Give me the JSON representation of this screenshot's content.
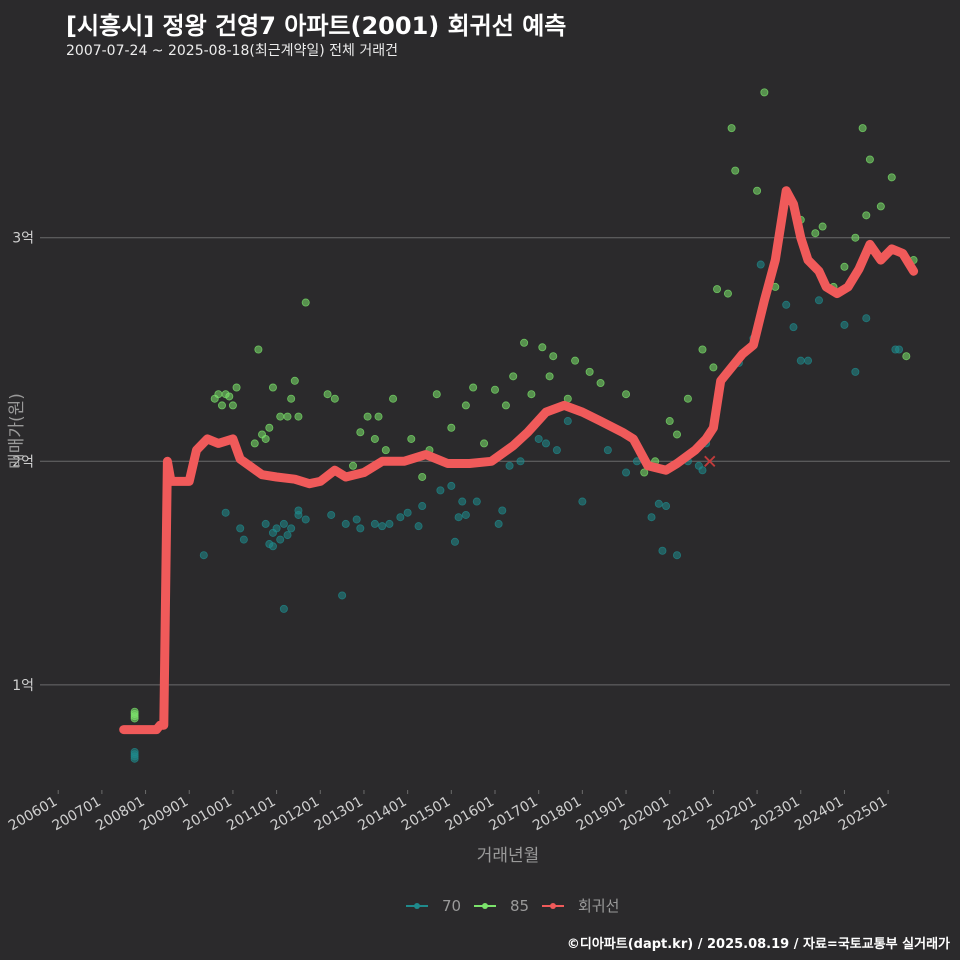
{
  "title": "[시흥시] 정왕 건영7 아파트(2001) 회귀선 예측",
  "subtitle": "2007-07-24 ~ 2025-08-18(최근계약일) 전체 거래건",
  "caption": "©디아파트(dapt.kr) / 2025.08.19 / 자료=국토교통부 실거래가",
  "colors": {
    "background": "#2b2a2c",
    "grid": "#6b6b6b",
    "text": "#cfcfcf",
    "series_70": "#1f8a8c",
    "series_85": "#7be36b",
    "regression": "#f05a5a"
  },
  "chart_data": {
    "type": "scatter",
    "title": "[시흥시] 정왕 건영7 아파트(2001) 회귀선 예측",
    "subtitle": "2007-07-24 ~ 2025-08-18(최근계약일) 전체 거래건",
    "xlabel": "거래년월",
    "ylabel": "매매가(원)",
    "xlim": [
      "2005-08",
      "2026-06"
    ],
    "ylim": [
      0.53,
      3.75
    ],
    "y_unit": "억",
    "x_ticks": [
      "200601",
      "200701",
      "200801",
      "200901",
      "201001",
      "201101",
      "201201",
      "201301",
      "201401",
      "201501",
      "201601",
      "201701",
      "201801",
      "201901",
      "202001",
      "202101",
      "202201",
      "202301",
      "202401",
      "202501"
    ],
    "y_ticks": [
      {
        "value": 1,
        "label": "1억"
      },
      {
        "value": 2,
        "label": "2억"
      },
      {
        "value": 3,
        "label": "3억"
      }
    ],
    "grid": "horizontal",
    "legend": {
      "position": "bottom",
      "entries": [
        "70",
        "85",
        "회귀선"
      ]
    },
    "series": [
      {
        "name": "70",
        "points": [
          [
            "2007-10",
            0.67
          ],
          [
            "2007-10",
            0.68
          ],
          [
            "2007-10",
            0.69
          ],
          [
            "2007-10",
            0.7
          ],
          [
            "2009-05",
            1.58
          ],
          [
            "2009-11",
            1.77
          ],
          [
            "2010-03",
            1.7
          ],
          [
            "2010-04",
            1.65
          ],
          [
            "2010-10",
            1.72
          ],
          [
            "2010-11",
            1.63
          ],
          [
            "2010-12",
            1.62
          ],
          [
            "2010-12",
            1.68
          ],
          [
            "2011-01",
            1.7
          ],
          [
            "2011-02",
            1.65
          ],
          [
            "2011-03",
            1.72
          ],
          [
            "2011-03",
            1.34
          ],
          [
            "2011-04",
            1.67
          ],
          [
            "2011-05",
            1.7
          ],
          [
            "2011-07",
            1.78
          ],
          [
            "2011-07",
            1.76
          ],
          [
            "2011-09",
            1.74
          ],
          [
            "2012-04",
            1.76
          ],
          [
            "2012-07",
            1.4
          ],
          [
            "2012-08",
            1.72
          ],
          [
            "2012-11",
            1.74
          ],
          [
            "2012-12",
            1.7
          ],
          [
            "2013-04",
            1.72
          ],
          [
            "2013-06",
            1.71
          ],
          [
            "2013-08",
            1.72
          ],
          [
            "2013-11",
            1.75
          ],
          [
            "2014-01",
            1.77
          ],
          [
            "2014-04",
            1.71
          ],
          [
            "2014-05",
            1.8
          ],
          [
            "2014-10",
            1.87
          ],
          [
            "2015-01",
            1.89
          ],
          [
            "2015-02",
            1.64
          ],
          [
            "2015-03",
            1.75
          ],
          [
            "2015-04",
            1.82
          ],
          [
            "2015-05",
            1.76
          ],
          [
            "2015-08",
            1.82
          ],
          [
            "2016-02",
            1.72
          ],
          [
            "2016-03",
            1.78
          ],
          [
            "2016-05",
            1.98
          ],
          [
            "2016-08",
            2.0
          ],
          [
            "2017-01",
            2.1
          ],
          [
            "2017-03",
            2.08
          ],
          [
            "2017-06",
            2.05
          ],
          [
            "2017-09",
            2.18
          ],
          [
            "2018-01",
            1.82
          ],
          [
            "2018-08",
            2.05
          ],
          [
            "2019-01",
            1.95
          ],
          [
            "2019-04",
            2.0
          ],
          [
            "2019-08",
            1.75
          ],
          [
            "2019-10",
            1.81
          ],
          [
            "2019-11",
            1.6
          ],
          [
            "2019-12",
            1.8
          ],
          [
            "2020-03",
            1.58
          ],
          [
            "2020-06",
            2.0
          ],
          [
            "2020-08",
            2.05
          ],
          [
            "2020-09",
            1.98
          ],
          [
            "2020-10",
            1.96
          ],
          [
            "2020-11",
            2.08
          ],
          [
            "2021-08",
            2.44
          ],
          [
            "2021-12",
            2.55
          ],
          [
            "2022-02",
            2.88
          ],
          [
            "2022-09",
            2.7
          ],
          [
            "2022-11",
            2.6
          ],
          [
            "2023-01",
            2.45
          ],
          [
            "2023-03",
            2.45
          ],
          [
            "2023-06",
            2.72
          ],
          [
            "2023-09",
            2.77
          ],
          [
            "2024-01",
            2.61
          ],
          [
            "2024-04",
            2.4
          ],
          [
            "2024-07",
            2.64
          ],
          [
            "2025-03",
            2.5
          ],
          [
            "2025-04",
            2.5
          ]
        ]
      },
      {
        "name": "85",
        "points": [
          [
            "2007-10",
            0.85
          ],
          [
            "2007-10",
            0.86
          ],
          [
            "2007-10",
            0.87
          ],
          [
            "2007-10",
            0.88
          ],
          [
            "2009-08",
            2.28
          ],
          [
            "2009-09",
            2.3
          ],
          [
            "2009-10",
            2.25
          ],
          [
            "2009-11",
            2.3
          ],
          [
            "2009-12",
            2.29
          ],
          [
            "2010-01",
            2.25
          ],
          [
            "2010-02",
            2.33
          ],
          [
            "2010-07",
            2.08
          ],
          [
            "2010-08",
            2.5
          ],
          [
            "2010-09",
            2.12
          ],
          [
            "2010-10",
            2.1
          ],
          [
            "2010-11",
            2.15
          ],
          [
            "2010-12",
            2.33
          ],
          [
            "2011-02",
            2.2
          ],
          [
            "2011-04",
            2.2
          ],
          [
            "2011-05",
            2.28
          ],
          [
            "2011-06",
            2.36
          ],
          [
            "2011-07",
            2.2
          ],
          [
            "2011-09",
            2.71
          ],
          [
            "2012-03",
            2.3
          ],
          [
            "2012-05",
            2.28
          ],
          [
            "2012-10",
            1.98
          ],
          [
            "2012-12",
            2.13
          ],
          [
            "2013-02",
            2.2
          ],
          [
            "2013-04",
            2.1
          ],
          [
            "2013-05",
            2.2
          ],
          [
            "2013-07",
            2.05
          ],
          [
            "2013-09",
            2.28
          ],
          [
            "2013-11",
            2.0
          ],
          [
            "2014-02",
            2.1
          ],
          [
            "2014-05",
            1.93
          ],
          [
            "2014-07",
            2.05
          ],
          [
            "2014-09",
            2.3
          ],
          [
            "2015-01",
            2.15
          ],
          [
            "2015-05",
            2.25
          ],
          [
            "2015-07",
            2.33
          ],
          [
            "2015-10",
            2.08
          ],
          [
            "2016-01",
            2.32
          ],
          [
            "2016-04",
            2.25
          ],
          [
            "2016-06",
            2.38
          ],
          [
            "2016-09",
            2.53
          ],
          [
            "2016-11",
            2.3
          ],
          [
            "2017-02",
            2.51
          ],
          [
            "2017-04",
            2.38
          ],
          [
            "2017-05",
            2.47
          ],
          [
            "2017-09",
            2.28
          ],
          [
            "2017-11",
            2.45
          ],
          [
            "2018-03",
            2.4
          ],
          [
            "2018-06",
            2.35
          ],
          [
            "2019-01",
            2.3
          ],
          [
            "2019-06",
            1.95
          ],
          [
            "2019-09",
            2.0
          ],
          [
            "2020-01",
            2.18
          ],
          [
            "2020-03",
            2.12
          ],
          [
            "2020-06",
            2.28
          ],
          [
            "2020-10",
            2.5
          ],
          [
            "2021-01",
            2.42
          ],
          [
            "2021-02",
            2.77
          ],
          [
            "2021-05",
            2.75
          ],
          [
            "2021-06",
            3.49
          ],
          [
            "2021-07",
            3.3
          ],
          [
            "2022-01",
            3.21
          ],
          [
            "2022-03",
            3.65
          ],
          [
            "2022-06",
            2.78
          ],
          [
            "2023-01",
            3.08
          ],
          [
            "2023-05",
            3.02
          ],
          [
            "2023-07",
            3.05
          ],
          [
            "2023-10",
            2.78
          ],
          [
            "2024-01",
            2.87
          ],
          [
            "2024-04",
            3.0
          ],
          [
            "2024-06",
            3.49
          ],
          [
            "2024-07",
            3.1
          ],
          [
            "2024-08",
            3.35
          ],
          [
            "2024-11",
            3.14
          ],
          [
            "2025-02",
            3.27
          ],
          [
            "2025-06",
            2.47
          ],
          [
            "2025-08",
            2.9
          ]
        ]
      },
      {
        "name": "회귀선",
        "type": "line",
        "points": [
          [
            "2007-07",
            0.8
          ],
          [
            "2008-02",
            0.8
          ],
          [
            "2008-04",
            0.8
          ],
          [
            "2008-05",
            0.82
          ],
          [
            "2008-06",
            0.82
          ],
          [
            "2008-07",
            2.0
          ],
          [
            "2008-08",
            1.91
          ],
          [
            "2009-01",
            1.91
          ],
          [
            "2009-03",
            2.05
          ],
          [
            "2009-06",
            2.1
          ],
          [
            "2009-09",
            2.08
          ],
          [
            "2010-01",
            2.1
          ],
          [
            "2010-03",
            2.01
          ],
          [
            "2010-09",
            1.94
          ],
          [
            "2011-01",
            1.93
          ],
          [
            "2011-06",
            1.92
          ],
          [
            "2011-10",
            1.9
          ],
          [
            "2012-01",
            1.91
          ],
          [
            "2012-05",
            1.96
          ],
          [
            "2012-08",
            1.93
          ],
          [
            "2013-01",
            1.95
          ],
          [
            "2013-06",
            2.0
          ],
          [
            "2013-12",
            2.0
          ],
          [
            "2014-06",
            2.03
          ],
          [
            "2014-12",
            1.99
          ],
          [
            "2015-06",
            1.99
          ],
          [
            "2015-12",
            2.0
          ],
          [
            "2016-06",
            2.07
          ],
          [
            "2016-10",
            2.13
          ],
          [
            "2017-03",
            2.22
          ],
          [
            "2017-08",
            2.25
          ],
          [
            "2018-01",
            2.22
          ],
          [
            "2018-06",
            2.18
          ],
          [
            "2018-12",
            2.13
          ],
          [
            "2019-03",
            2.1
          ],
          [
            "2019-07",
            1.98
          ],
          [
            "2019-12",
            1.96
          ],
          [
            "2020-03",
            1.99
          ],
          [
            "2020-08",
            2.05
          ],
          [
            "2020-11",
            2.1
          ],
          [
            "2021-01",
            2.15
          ],
          [
            "2021-03",
            2.36
          ],
          [
            "2021-06",
            2.42
          ],
          [
            "2021-09",
            2.48
          ],
          [
            "2021-12",
            2.52
          ],
          [
            "2022-03",
            2.72
          ],
          [
            "2022-06",
            2.9
          ],
          [
            "2022-09",
            3.21
          ],
          [
            "2022-11",
            3.15
          ],
          [
            "2023-01",
            3.0
          ],
          [
            "2023-03",
            2.9
          ],
          [
            "2023-06",
            2.85
          ],
          [
            "2023-08",
            2.78
          ],
          [
            "2023-11",
            2.75
          ],
          [
            "2024-02",
            2.78
          ],
          [
            "2024-05",
            2.86
          ],
          [
            "2024-08",
            2.97
          ],
          [
            "2024-11",
            2.9
          ],
          [
            "2025-02",
            2.95
          ],
          [
            "2025-05",
            2.93
          ],
          [
            "2025-08",
            2.85
          ]
        ]
      }
    ],
    "annotations": [
      {
        "type": "x-marker",
        "x": "2020-12",
        "y": 2.0
      }
    ]
  }
}
